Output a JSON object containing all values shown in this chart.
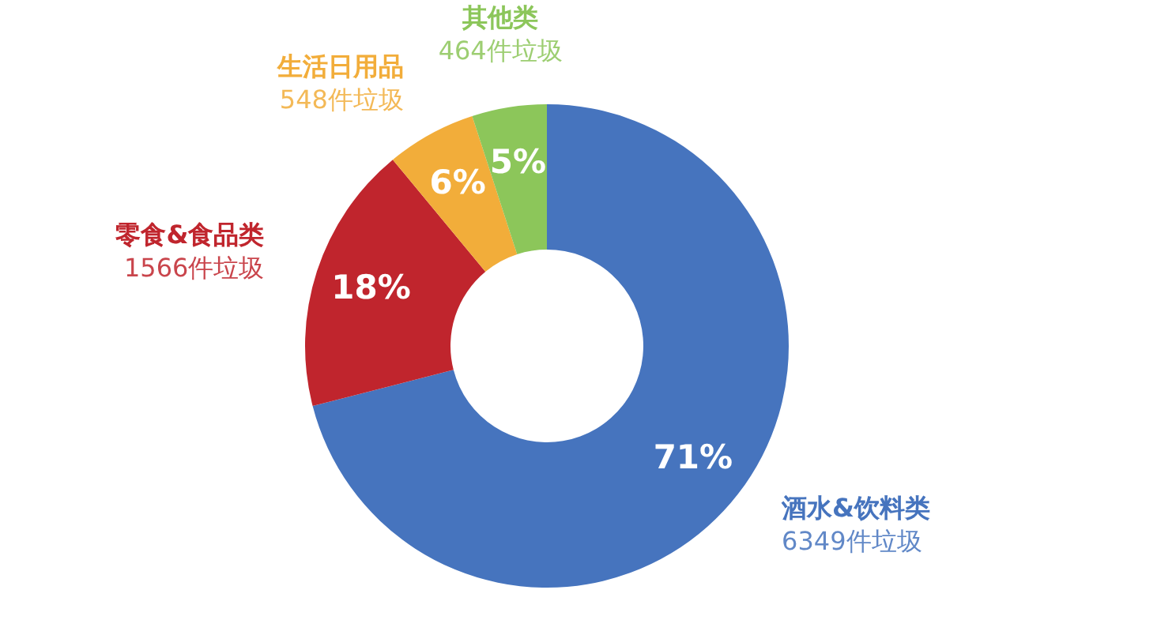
{
  "chart_data": {
    "type": "donut",
    "categories": [
      "酒水&饮料类",
      "零食&食品类",
      "生活日用品",
      "其他类"
    ],
    "values": [
      71,
      18,
      6,
      5
    ],
    "colors": [
      "#4674be",
      "#c0252d",
      "#f2ad3a",
      "#8cc65a"
    ],
    "value_labels": [
      "71%",
      "18%",
      "6%",
      "5%"
    ],
    "annotations": [
      "6349件垃圾",
      "1566件垃圾",
      "548件垃圾",
      "464件垃圾"
    ]
  }
}
